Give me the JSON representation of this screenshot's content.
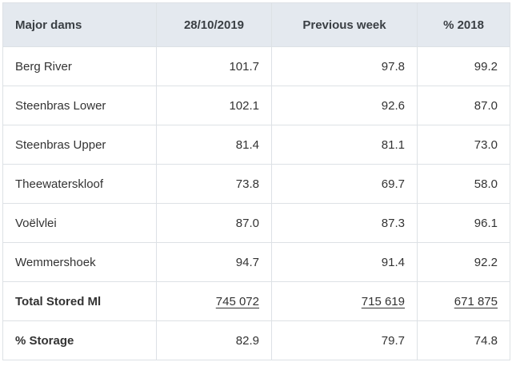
{
  "headers": [
    "Major dams",
    "28/10/2019",
    "Previous week",
    "% 2018"
  ],
  "rows": [
    {
      "name": "Berg River",
      "current": "101.7",
      "previous": "97.8",
      "year2018": "99.2"
    },
    {
      "name": "Steenbras Lower",
      "current": "102.1",
      "previous": "92.6",
      "year2018": "87.0"
    },
    {
      "name": "Steenbras Upper",
      "current": "81.4",
      "previous": "81.1",
      "year2018": "73.0"
    },
    {
      "name": "Theewaterskloof",
      "current": "73.8",
      "previous": "69.7",
      "year2018": "58.0"
    },
    {
      "name": "Voëlvlei",
      "current": "87.0",
      "previous": "87.3",
      "year2018": "96.1"
    },
    {
      "name": "Wemmershoek",
      "current": "94.7",
      "previous": "91.4",
      "year2018": "92.2"
    }
  ],
  "totals": {
    "name": "Total Stored Ml",
    "current": "745 072",
    "previous": "715 619",
    "year2018": "671 875"
  },
  "storage": {
    "name": "% Storage",
    "current": "82.9",
    "previous": "79.7",
    "year2018": "74.8"
  }
}
